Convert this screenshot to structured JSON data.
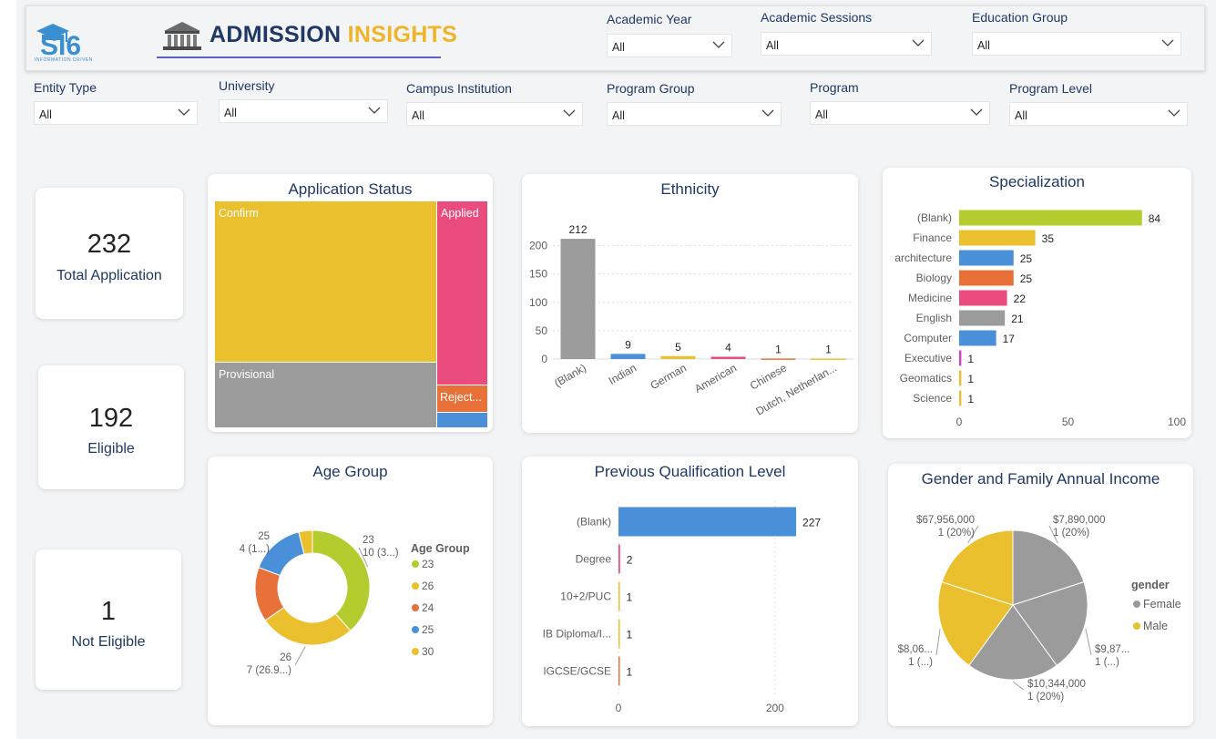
{
  "header": {
    "logo_text": "SI6",
    "logo_sub": "INFORMATION DRIVEN",
    "title_part1": "ADMISSION",
    "title_part2": "INSIGHTS"
  },
  "slicers": {
    "academic_year": {
      "label": "Academic Year",
      "value": "All"
    },
    "academic_sessions": {
      "label": "Academic Sessions",
      "value": "All"
    },
    "education_group": {
      "label": "Education Group",
      "value": "All"
    },
    "entity_type": {
      "label": "Entity Type",
      "value": "All"
    },
    "university": {
      "label": "University",
      "value": "All"
    },
    "campus_institution": {
      "label": "Campus Institution",
      "value": "All"
    },
    "program_group": {
      "label": "Program Group",
      "value": "All"
    },
    "program": {
      "label": "Program",
      "value": "All"
    },
    "program_level": {
      "label": "Program Level",
      "value": "All"
    }
  },
  "kpis": {
    "total": {
      "value": "232",
      "label": "Total Application"
    },
    "eligible": {
      "value": "192",
      "label": "Eligible"
    },
    "not_eligible": {
      "value": "1",
      "label": "Not Eligible"
    }
  },
  "colors": {
    "yellow": "#ebc02e",
    "pink": "#ea4c7d",
    "gray": "#9b9b9b",
    "orange": "#e8713a",
    "blue": "#4a90d9",
    "lime": "#b5cc2e",
    "magenta": "#d93ec6",
    "navy": "#1f3864"
  },
  "chart_data": [
    {
      "id": "application_status",
      "type": "treemap",
      "title": "Application Status",
      "categories": [
        "Confirm",
        "Provisional",
        "Applied",
        "Reject...",
        ""
      ],
      "values": [
        140,
        50,
        30,
        5,
        2
      ]
    },
    {
      "id": "ethnicity",
      "type": "bar",
      "title": "Ethnicity",
      "categories": [
        "(Blank)",
        "Indian",
        "German",
        "American",
        "Chinese",
        "Dutch, Netherlan..."
      ],
      "values": [
        212,
        9,
        5,
        4,
        1,
        1
      ],
      "ylim": [
        0,
        225
      ],
      "yticks": [
        0,
        50,
        100,
        150,
        200
      ]
    },
    {
      "id": "specialization",
      "type": "bar",
      "orientation": "horizontal",
      "title": "Specialization",
      "categories": [
        "(Blank)",
        "Finance",
        "architecture",
        "Biology",
        "Medicine",
        "English",
        "Computer",
        "Executive",
        "Geomatics",
        "Science"
      ],
      "values": [
        84,
        35,
        25,
        25,
        22,
        21,
        17,
        1,
        1,
        1
      ],
      "xlim": [
        0,
        100
      ],
      "xticks": [
        0,
        50,
        100
      ]
    },
    {
      "id": "age_group",
      "type": "pie",
      "donut": true,
      "title": "Age Group",
      "legend_title": "Age Group",
      "categories": [
        "23",
        "26",
        "24",
        "25",
        "30"
      ],
      "values": [
        10,
        7,
        4,
        4,
        1
      ],
      "slice_labels": [
        {
          "line1": "23",
          "line2": "10 (3...)"
        },
        {
          "line1": "26",
          "line2": "7 (26.9...)"
        },
        {
          "line1": "",
          "line2": ""
        },
        {
          "line1": "25",
          "line2": "4 (1...)"
        },
        {
          "line1": "",
          "line2": ""
        }
      ]
    },
    {
      "id": "previous_qualification",
      "type": "bar",
      "orientation": "horizontal",
      "title": "Previous Qualification Level",
      "categories": [
        "(Blank)",
        "Degree",
        "10+2/PUC",
        "IB Diploma/I...",
        "IGCSE/GCSE"
      ],
      "values": [
        227,
        2,
        1,
        1,
        1
      ],
      "xlim": [
        0,
        270
      ],
      "xticks": [
        0,
        200
      ]
    },
    {
      "id": "gender_income",
      "type": "pie",
      "title": "Gender and Family Annual Income",
      "legend_title": "gender",
      "legend": [
        "Female",
        "Male"
      ],
      "slices": [
        {
          "gender": "Female",
          "value": 7890000,
          "label1": "$7,890,000",
          "label2": "1 (20%)"
        },
        {
          "gender": "Female",
          "value": 9870000,
          "label1": "$9,87...",
          "label2": "1 (...)"
        },
        {
          "gender": "Female",
          "value": 10344000,
          "label1": "$10,344,000",
          "label2": "1 (20%)"
        },
        {
          "gender": "Male",
          "value": 8060000,
          "label1": "$8,06...",
          "label2": "1 (...)"
        },
        {
          "gender": "Male",
          "value": 67956000,
          "label1": "$67,956,000",
          "label2": "1 (20%)"
        }
      ],
      "percent_each": 20
    }
  ]
}
